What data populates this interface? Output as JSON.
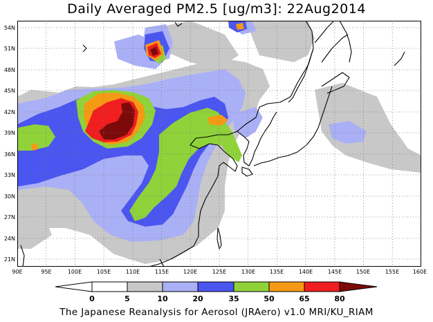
{
  "title": "Daily Averaged PM2.5 [ug/m3]: 22Aug2014",
  "footer": "The Japanese Reanalysis for Aerosol (JRAero) v1.0 MRI/KU_RIAM",
  "map": {
    "lon_ticks": [
      "90E",
      "95E",
      "100E",
      "105E",
      "110E",
      "115E",
      "120E",
      "125E",
      "130E",
      "135E",
      "140E",
      "145E",
      "150E",
      "155E",
      "160E"
    ],
    "lat_ticks": [
      "54N",
      "51N",
      "48N",
      "45N",
      "42N",
      "39N",
      "36N",
      "33N",
      "30N",
      "27N",
      "24N",
      "21N"
    ],
    "gridlines": "dotted"
  },
  "colorbar": {
    "levels": [
      "0",
      "5",
      "10",
      "20",
      "35",
      "50",
      "65",
      "80"
    ],
    "colors": [
      "#ffffff",
      "#c8c8c8",
      "#aab0f5",
      "#4b55f0",
      "#8fd23a",
      "#f59a14",
      "#f01e1e",
      "#7d0a0a"
    ]
  }
}
